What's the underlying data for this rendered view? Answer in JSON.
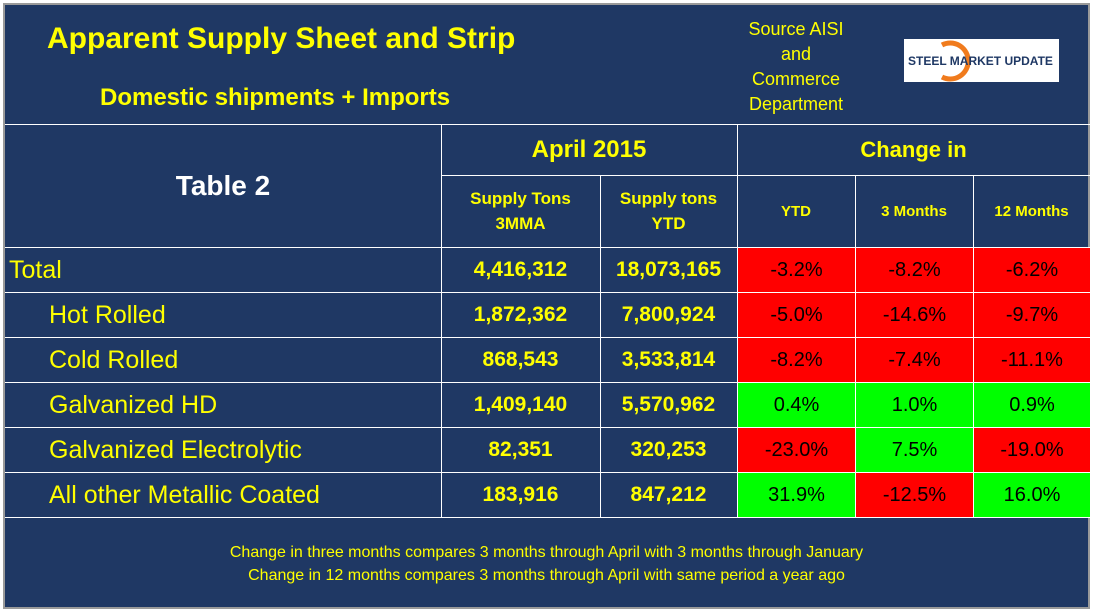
{
  "header": {
    "title": "Apparent Supply Sheet and Strip",
    "subtitle": "Domestic shipments + Imports",
    "source_lines": [
      "Source AISI",
      "and",
      "Commerce",
      "Department"
    ],
    "logo_text": "STEEL MARKET UPDATE"
  },
  "table": {
    "label": "Table 2",
    "period_header": "April 2015",
    "change_header": "Change in",
    "col_supply_3mma": [
      "Supply Tons",
      "3MMA"
    ],
    "col_supply_ytd": [
      "Supply tons",
      "YTD"
    ],
    "col_ytd": "YTD",
    "col_3m": "3 Months",
    "col_12m": "12 Months",
    "rows": [
      {
        "label": "Total",
        "tons_3mma": "4,416,312",
        "tons_ytd": "18,073,165",
        "chg_ytd": "-3.2%",
        "chg_3m": "-8.2%",
        "chg_12m": "-6.2%"
      },
      {
        "label": "Hot Rolled",
        "tons_3mma": "1,872,362",
        "tons_ytd": "7,800,924",
        "chg_ytd": "-5.0%",
        "chg_3m": "-14.6%",
        "chg_12m": "-9.7%"
      },
      {
        "label": "Cold Rolled",
        "tons_3mma": "868,543",
        "tons_ytd": "3,533,814",
        "chg_ytd": "-8.2%",
        "chg_3m": "-7.4%",
        "chg_12m": "-11.1%"
      },
      {
        "label": "Galvanized HD",
        "tons_3mma": "1,409,140",
        "tons_ytd": "5,570,962",
        "chg_ytd": "0.4%",
        "chg_3m": "1.0%",
        "chg_12m": "0.9%"
      },
      {
        "label": "Galvanized Electrolytic",
        "tons_3mma": "82,351",
        "tons_ytd": "320,253",
        "chg_ytd": "-23.0%",
        "chg_3m": "7.5%",
        "chg_12m": "-19.0%"
      },
      {
        "label": "All other Metallic Coated",
        "tons_3mma": "183,916",
        "tons_ytd": "847,212",
        "chg_ytd": "31.9%",
        "chg_3m": "-12.5%",
        "chg_12m": "16.0%"
      }
    ]
  },
  "footnotes": [
    "Change in three months compares 3 months through April with 3 months through January",
    "Change in 12 months compares 3 months through April with same period a year ago"
  ],
  "colors": {
    "background": "#1f3864",
    "text": "#ffff00",
    "negative": "#ff0000",
    "positive": "#00ff00"
  }
}
